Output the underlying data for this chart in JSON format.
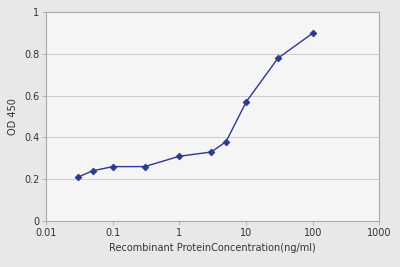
{
  "x_data": [
    0.03,
    0.05,
    0.1,
    0.3,
    1,
    3,
    5,
    10,
    30,
    100
  ],
  "y_data": [
    0.21,
    0.24,
    0.26,
    0.26,
    0.31,
    0.33,
    0.38,
    0.57,
    0.78,
    0.9
  ],
  "xlim": [
    0.01,
    1000
  ],
  "ylim": [
    0,
    1
  ],
  "yticks": [
    0,
    0.2,
    0.4,
    0.6,
    0.8,
    1
  ],
  "ytick_labels": [
    "0",
    "0.2",
    "0.4",
    "0.6",
    "0.8",
    "1"
  ],
  "xtick_vals": [
    0.01,
    0.1,
    1,
    10,
    100,
    1000
  ],
  "xtick_labels": [
    "0.01",
    "0.1",
    "1",
    "10",
    "100",
    "1000"
  ],
  "xlabel": "Recombinant ProteinConcentration(ng/ml)",
  "ylabel": "OD 450",
  "line_color": "#2B3990",
  "marker_color": "#2B3990",
  "marker": "D",
  "marker_size": 3.5,
  "line_width": 1.0,
  "fig_bg_color": "#e8e8e8",
  "plot_bg_color": "#f5f5f5",
  "grid_color": "#cccccc",
  "spine_color": "#aaaaaa",
  "tick_label_color": "#333333",
  "xlabel_fontsize": 7,
  "ylabel_fontsize": 7,
  "tick_fontsize": 7
}
